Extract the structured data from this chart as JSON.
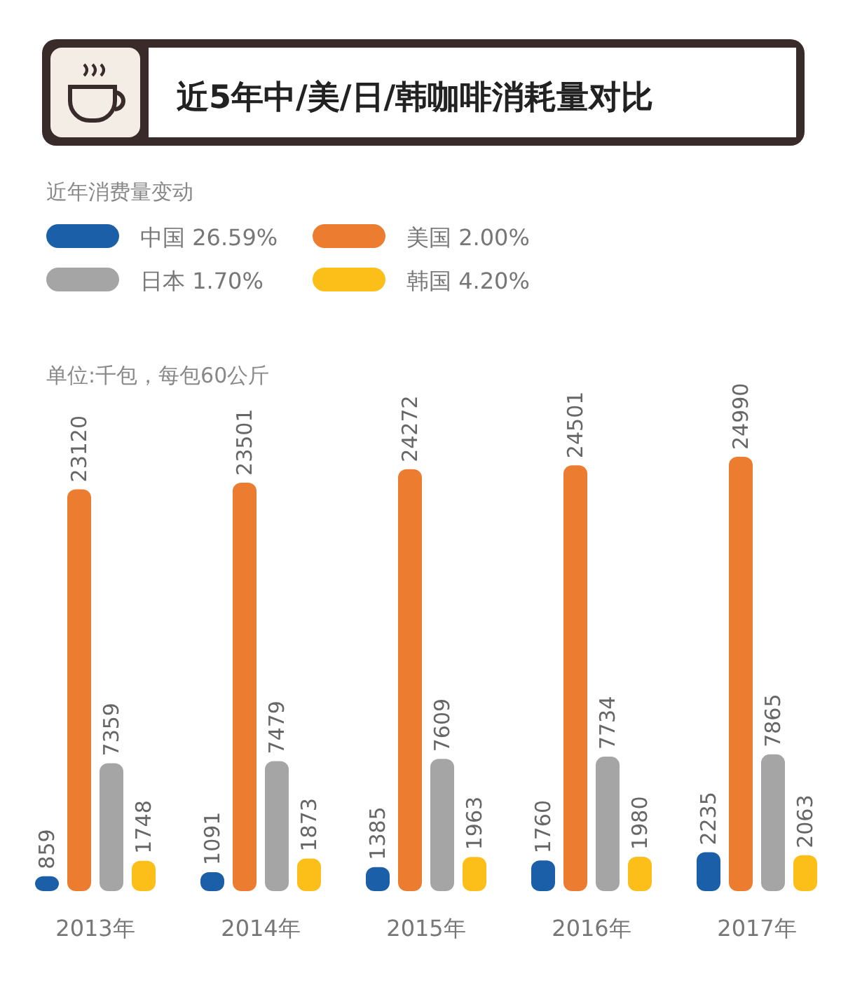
{
  "chart_data": {
    "type": "bar",
    "title": "近5年中/美/日/韩咖啡消耗量对比",
    "subtitle": "近年消费量变动",
    "annotations": [
      "单位:千包，每包60公斤"
    ],
    "categories": [
      "2013年",
      "2014年",
      "2015年",
      "2016年",
      "2017年"
    ],
    "series": [
      {
        "name": "中国 26.59%",
        "color": "#1a5fa8",
        "values": [
          859,
          1091,
          1385,
          1760,
          2235
        ]
      },
      {
        "name": "美国 2.00%",
        "color": "#ec7c30",
        "values": [
          23120,
          23501,
          24272,
          24501,
          24990
        ]
      },
      {
        "name": "日本 1.70%",
        "color": "#a5a5a5",
        "values": [
          7359,
          7479,
          7609,
          7734,
          7865
        ]
      },
      {
        "name": "韩国 4.20%",
        "color": "#fcbf1a",
        "values": [
          1748,
          1873,
          1963,
          1980,
          2063
        ]
      }
    ],
    "data_labels": true,
    "legend": "top left"
  }
}
